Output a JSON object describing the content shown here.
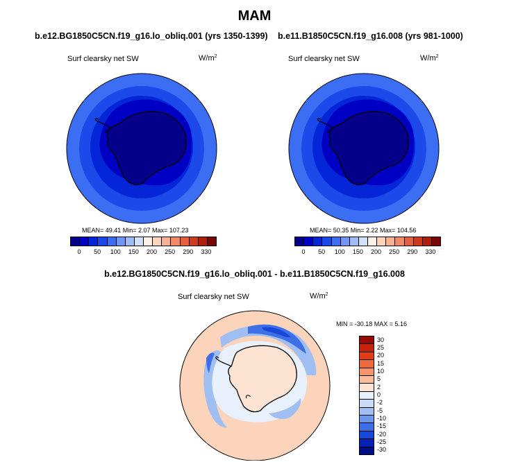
{
  "season": "MAM",
  "panels": [
    {
      "case_title": "b.e12.BG1850C5CN.f19_g16.lo_obliq.001 (yrs 1350-1399)",
      "variable": "Surf clearsky net SW",
      "units": "W/m",
      "units_sup": "2",
      "stats": "MEAN= 49.41  Min=   2.07  Max= 107.23"
    },
    {
      "case_title": "b.e11.B1850C5CN.f19_g16.008 (yrs 981-1000)",
      "variable": "Surf clearsky net SW",
      "units": "W/m",
      "units_sup": "2",
      "stats": "MEAN= 50.35  Min=   2.22  Max= 104.56"
    }
  ],
  "diff_panel": {
    "title": "b.e12.BG1850C5CN.f19_g16.lo_obliq.001 - b.e11.B1850C5CN.f19_g16.008",
    "variable": "Surf clearsky net SW",
    "units": "W/m",
    "units_sup": "2",
    "stats": "MIN = -30.18 MAX =   5.16"
  },
  "abs_colorbar": {
    "colors": [
      "#05008a",
      "#0000c4",
      "#0526d8",
      "#1c49e9",
      "#3c6ef3",
      "#6d96f5",
      "#9dbcf4",
      "#cfe0f7",
      "#fdf0e4",
      "#fcd4bc",
      "#f8b291",
      "#f28b65",
      "#e6603f",
      "#cf3a1f",
      "#b01e0d",
      "#7a0705"
    ],
    "labels": [
      "0",
      "50",
      "100",
      "150",
      "200",
      "250",
      "290",
      "330"
    ]
  },
  "diff_colorbar": {
    "colors_top_to_bottom": [
      "#9b0b05",
      "#c42310",
      "#df3e19",
      "#ee6a3d",
      "#f59569",
      "#f8bd99",
      "#fde3d2",
      "#e7f0fb",
      "#c9dcf6",
      "#9fbff2",
      "#6b98ec",
      "#3d70e6",
      "#1847d7",
      "#0622b4",
      "#020e86"
    ],
    "labels_top_to_bottom": [
      "30",
      "25",
      "20",
      "15",
      "10",
      "5",
      "2",
      "0",
      "-2",
      "-5",
      "-10",
      "-15",
      "-20",
      "-25",
      "-30"
    ]
  },
  "map_colors": {
    "ocean_outer": "#3c6ef3",
    "ocean_mid": "#1c49e9",
    "ocean_inner": "#0526d8",
    "ice": "#0000c4",
    "land": "#05008a",
    "diff_bg": "#fcd4bc",
    "diff_ice": "#e7f0fb",
    "diff_blue_light": "#9fbff2",
    "diff_blue_mid": "#3d70e6",
    "diff_blue_dark": "#1847d7"
  }
}
